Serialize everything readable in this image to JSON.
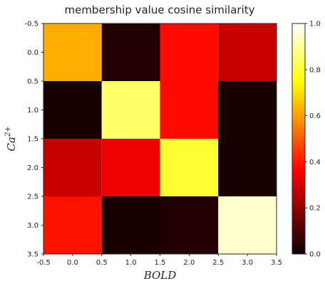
{
  "chart_data": {
    "type": "heatmap",
    "title": "membership value cosine similarity",
    "xlabel": "BOLD",
    "ylabel": "Ca",
    "ylabel_superscript": "2+",
    "xlim": [
      -0.5,
      3.5
    ],
    "ylim": [
      3.5,
      -0.5
    ],
    "xticks": [
      "-0.5",
      "0.0",
      "0.5",
      "1.0",
      "1.5",
      "2.0",
      "2.5",
      "3.0",
      "3.5"
    ],
    "yticks": [
      "-0.5",
      "0.0",
      "0.5",
      "1.0",
      "1.5",
      "2.0",
      "2.5",
      "3.0",
      "3.5"
    ],
    "colormap": "hot",
    "colorbar_range": [
      0.0,
      1.0
    ],
    "colorbar_ticks": [
      "0.0",
      "0.2",
      "0.4",
      "0.6",
      "0.8",
      "1.0"
    ],
    "values": [
      [
        0.62,
        0.03,
        0.38,
        0.27
      ],
      [
        0.02,
        0.85,
        0.38,
        0.02
      ],
      [
        0.27,
        0.33,
        0.8,
        0.02
      ],
      [
        0.39,
        0.02,
        0.03,
        0.95
      ]
    ],
    "grid": false
  }
}
